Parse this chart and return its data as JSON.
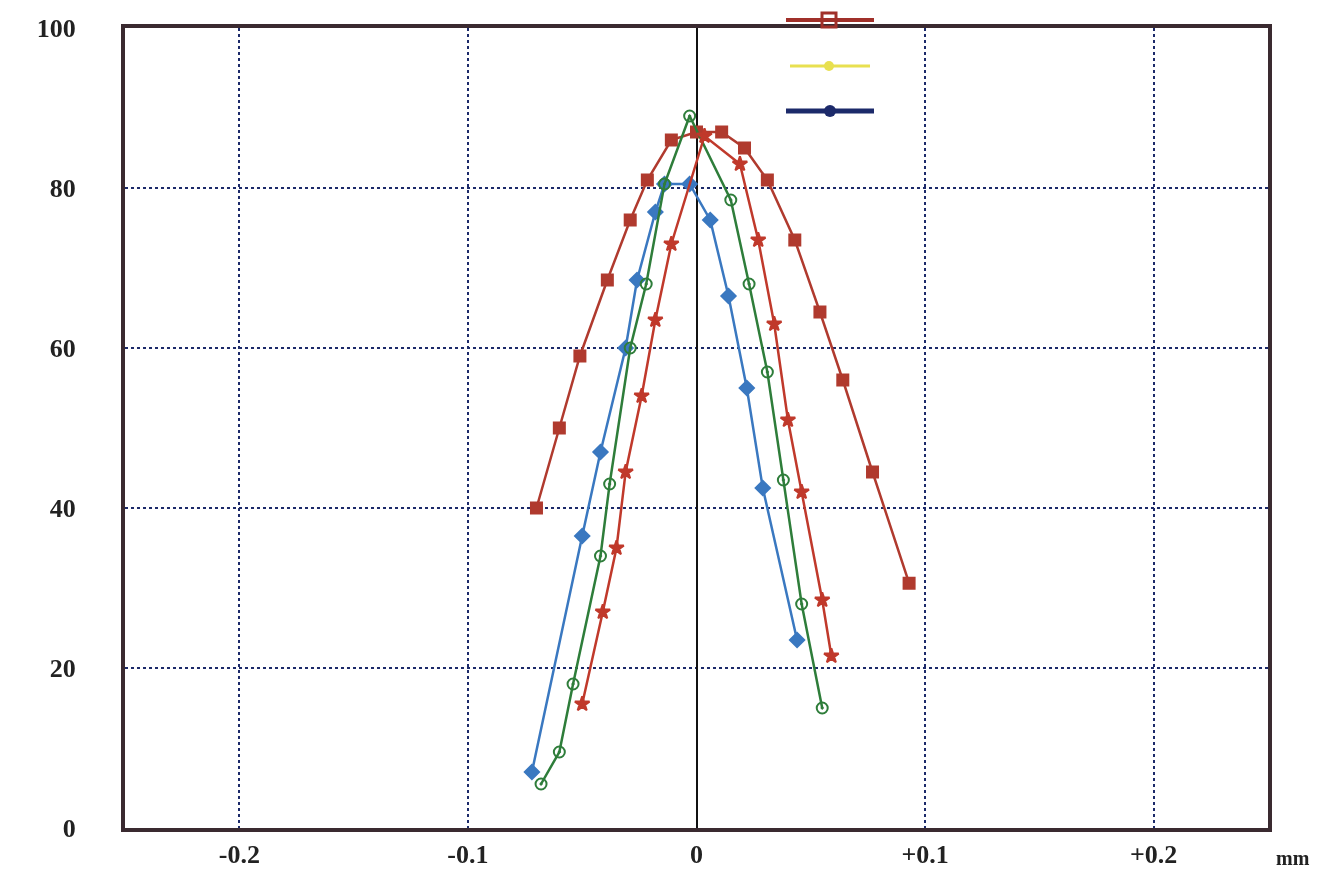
{
  "chart_data": {
    "type": "line",
    "xlabel": "mm",
    "xlim": [
      -0.25,
      0.25
    ],
    "ylim": [
      0,
      100
    ],
    "xticks": [
      {
        "value": -0.2,
        "label": "-0.2"
      },
      {
        "value": -0.1,
        "label": "-0.1"
      },
      0,
      {
        "value": 0.1,
        "label": "+0.1"
      },
      {
        "value": 0.2,
        "label": "+0.2"
      }
    ],
    "yticks": [
      0,
      20,
      40,
      60,
      80,
      100
    ],
    "grid": true,
    "series": [
      {
        "color": "#b03a2e",
        "marker": "square",
        "x": [
          -0.07,
          -0.06,
          -0.051,
          -0.039,
          -0.029,
          -0.0215,
          -0.011,
          0,
          0.011,
          0.021,
          0.031,
          0.043,
          0.054,
          0.064,
          0.077,
          0.093
        ],
        "values": [
          40,
          50,
          59,
          68.5,
          76,
          81,
          86,
          87,
          87,
          85,
          81,
          73.5,
          64.5,
          56,
          44.5,
          30.6
        ]
      },
      {
        "color": "#3a78c0",
        "marker": "diamond",
        "x": [
          -0.072,
          -0.05,
          -0.042,
          -0.031,
          -0.026,
          -0.018,
          -0.014,
          -0.003,
          0.006,
          0.014,
          0.022,
          0.029,
          0.044
        ],
        "values": [
          7,
          36.5,
          47,
          60,
          68.5,
          77,
          80.5,
          80.5,
          76,
          66.5,
          55,
          42.5,
          23.5
        ]
      },
      {
        "color": "#2e7d3a",
        "marker": "circle",
        "x": [
          -0.068,
          -0.06,
          -0.054,
          -0.042,
          -0.038,
          -0.029,
          -0.022,
          -0.014,
          -0.003,
          0.015,
          0.023,
          0.031,
          0.038,
          0.046,
          0.055
        ],
        "values": [
          5.5,
          9.5,
          18,
          34,
          43,
          60,
          68,
          80.5,
          89,
          78.5,
          68,
          57,
          43.5,
          28,
          15
        ]
      },
      {
        "color": "#c0392b",
        "marker": "star",
        "x": [
          -0.05,
          -0.041,
          -0.035,
          -0.031,
          -0.024,
          -0.018,
          -0.011,
          0.0035,
          0.019,
          0.027,
          0.034,
          0.04,
          0.046,
          0.055,
          0.059
        ],
        "values": [
          15.5,
          27,
          35,
          44.5,
          54,
          63.5,
          73,
          86.5,
          83,
          73.5,
          63,
          51,
          42,
          28.5,
          21.5
        ]
      }
    ]
  }
}
